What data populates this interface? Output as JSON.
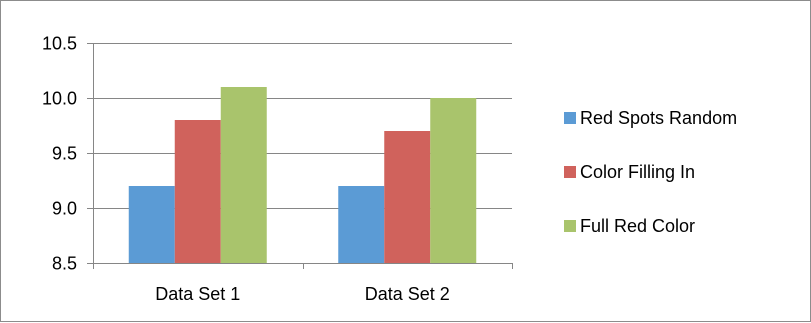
{
  "chart_data": {
    "type": "bar",
    "categories": [
      "Data Set 1",
      "Data Set 2"
    ],
    "series": [
      {
        "name": "Red Spots Random",
        "color": "#5b9bd5",
        "values": [
          9.2,
          9.2
        ]
      },
      {
        "name": "Color Filling In",
        "color": "#d0625c",
        "values": [
          9.8,
          9.7
        ]
      },
      {
        "name": "Full Red Color",
        "color": "#a9c46c",
        "values": [
          10.1,
          10.0
        ]
      }
    ],
    "ylim": [
      8.5,
      10.5
    ],
    "yticks": [
      "8.5",
      "9.0",
      "9.5",
      "10.0",
      "10.5"
    ],
    "grid": true,
    "legend_position": "right",
    "axis_color": "#868686",
    "grid_color": "#868686"
  }
}
